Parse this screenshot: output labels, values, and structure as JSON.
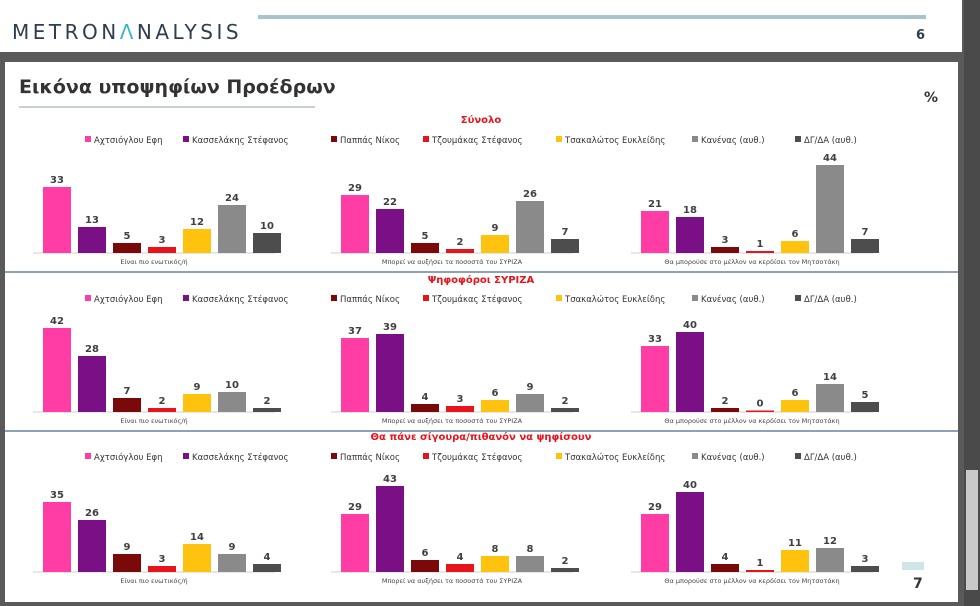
{
  "header": {
    "logo_main": "METRON",
    "logo_accent": "Λ",
    "logo_rest": "NALYSIS",
    "page_number": "6"
  },
  "slide": {
    "title": "Εικόνα υποψηφίων Προέδρων",
    "unit": "%",
    "page_number": "7"
  },
  "colors": {
    "title_red": "#e8141b",
    "logo_text": "#2d3e50",
    "logo_accent": "#39b5c8",
    "divider": "#4a6a8a"
  },
  "chart_data": {
    "type": "bar",
    "series": [
      {
        "name": "Αχτσιόγλου Εφη",
        "color": "#ff3da5"
      },
      {
        "name": "Κασσελάκης Στέφανος",
        "color": "#7b0f86"
      },
      {
        "name": "Παππάς Νίκος",
        "color": "#7a0a0a"
      },
      {
        "name": "Τζουμάκας Στέφανος",
        "color": "#e8141b"
      },
      {
        "name": "Τσακαλώτος Ευκλείδης",
        "color": "#ffc20e"
      },
      {
        "name": "Κανένας (αυθ.)",
        "color": "#8a8a8a"
      },
      {
        "name": "ΔΓ/ΔΑ (αυθ.)",
        "color": "#4d4d4d"
      }
    ],
    "panels": [
      {
        "title": "Σύνολο",
        "groups": [
          {
            "label": "Είναι πιο ενωτικός/ή",
            "values": [
              33,
              13,
              5,
              3,
              12,
              24,
              10
            ]
          },
          {
            "label": "Μπορεί να αυξήσει τα ποσοστά του ΣΥΡΙΖΑ",
            "values": [
              29,
              22,
              5,
              2,
              9,
              26,
              7
            ]
          },
          {
            "label": "Θα μπορούσε στο μέλλον να κερδίσει τον Μητσοτάκη",
            "values": [
              21,
              18,
              3,
              1,
              6,
              44,
              7
            ]
          }
        ]
      },
      {
        "title": "Ψηφοφόροι ΣΥΡΙΖΑ",
        "groups": [
          {
            "label": "Είναι πιο ενωτικός/ή",
            "values": [
              42,
              28,
              7,
              2,
              9,
              10,
              2
            ]
          },
          {
            "label": "Μπορεί να αυξήσει τα ποσοστά του ΣΥΡΙΖΑ",
            "values": [
              37,
              39,
              4,
              3,
              6,
              9,
              2
            ]
          },
          {
            "label": "Θα μπορούσε στο μέλλον να κερδίσει τον Μητσοτάκη",
            "values": [
              33,
              40,
              2,
              0,
              6,
              14,
              5
            ]
          }
        ]
      },
      {
        "title": "Θα πάνε σίγουρα/πιθανόν να ψηφίσουν",
        "groups": [
          {
            "label": "Είναι πιο ενωτικός/ή",
            "values": [
              35,
              26,
              9,
              3,
              14,
              9,
              4
            ]
          },
          {
            "label": "Μπορεί να αυξήσει τα ποσοστά του ΣΥΡΙΖΑ",
            "values": [
              29,
              43,
              6,
              4,
              8,
              8,
              2
            ]
          },
          {
            "label": "Θα μπορούσε στο μέλλον να κερδίσει τον Μητσοτάκη",
            "values": [
              29,
              40,
              4,
              1,
              11,
              12,
              3
            ]
          }
        ]
      }
    ]
  }
}
